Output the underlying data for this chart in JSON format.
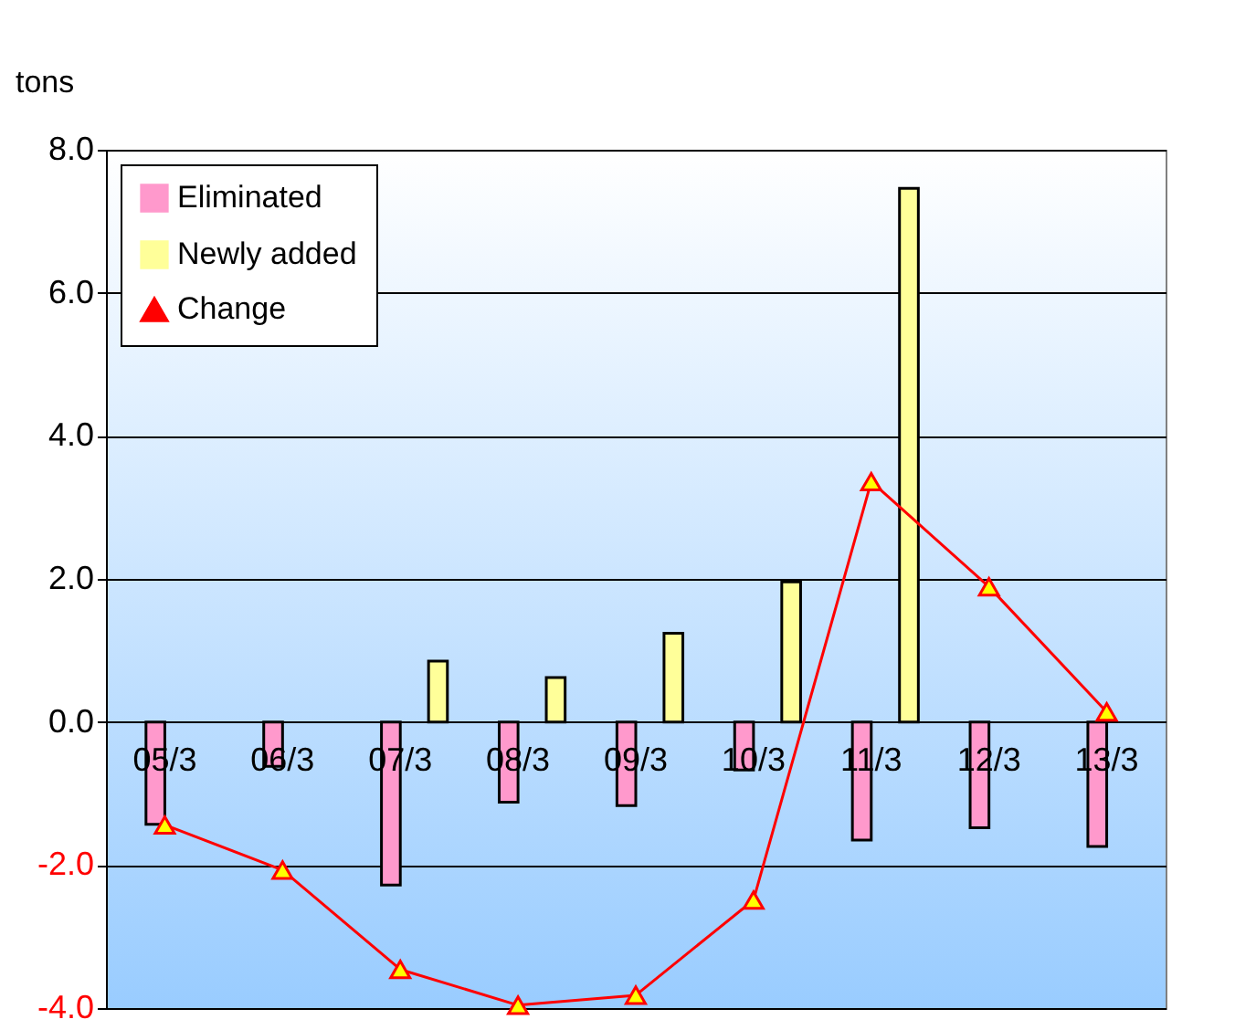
{
  "chart_data": {
    "type": "bar",
    "ylabel": "tons",
    "categories": [
      "05/3",
      "06/3",
      "07/3",
      "08/3",
      "09/3",
      "10/3",
      "11/3",
      "12/3",
      "13/3"
    ],
    "series": [
      {
        "name": "Eliminated",
        "color": "#ff99cc",
        "values": [
          -1.43,
          -0.62,
          -2.28,
          -1.12,
          -1.17,
          -0.67,
          -1.65,
          -1.48,
          -1.74
        ]
      },
      {
        "name": "Newly added",
        "color": "#ffff99",
        "values": [
          null,
          null,
          0.85,
          0.62,
          1.24,
          1.96,
          7.46,
          null,
          null
        ]
      },
      {
        "name": "Change",
        "type": "line",
        "color": "#ff0000",
        "values": [
          -1.44,
          -2.07,
          -3.46,
          -3.96,
          -3.82,
          -2.49,
          3.36,
          1.89,
          0.14
        ]
      }
    ],
    "ylim": [
      -4,
      8
    ],
    "yticks": [
      {
        "value": -4,
        "label": "-4.0"
      },
      {
        "value": -2,
        "label": "-2.0"
      },
      {
        "value": 0,
        "label": "0.0"
      },
      {
        "value": 2,
        "label": "2.0"
      },
      {
        "value": 4,
        "label": "4.0"
      },
      {
        "value": 6,
        "label": "6.0"
      },
      {
        "value": 8,
        "label": "8.0"
      }
    ],
    "grid": "y",
    "legend": "top left",
    "marker": "triangle",
    "line_style": "solid"
  }
}
